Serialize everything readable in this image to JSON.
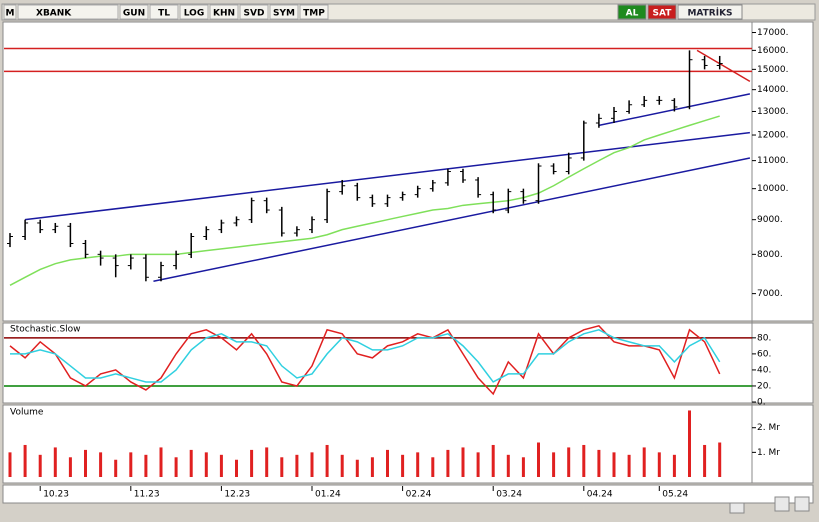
{
  "toolbar": {
    "left": [
      "M",
      "XBANK",
      "GUN",
      "TL",
      "LOG",
      "KHN",
      "SVD",
      "SYM",
      "TMP"
    ],
    "right": [
      "AL",
      "SAT",
      "MATRİKS"
    ]
  },
  "chart_data": [
    {
      "type": "ohlc",
      "log_scale": true,
      "ylim": [
        6400,
        17500
      ],
      "yticks": [
        {
          "value": 7000,
          "label": "7000."
        },
        {
          "value": 8000,
          "label": "8000."
        },
        {
          "value": 9000,
          "label": "9000."
        },
        {
          "value": 10000,
          "label": "10000."
        },
        {
          "value": 11000,
          "label": "11000."
        },
        {
          "value": 12000,
          "label": "12000."
        },
        {
          "value": 13000,
          "label": "13000."
        },
        {
          "value": 14000,
          "label": "14000."
        },
        {
          "value": 15000,
          "label": "15000."
        },
        {
          "value": 16000,
          "label": "16000."
        },
        {
          "value": 17000,
          "label": "17000."
        }
      ],
      "color": "#000000",
      "open": [
        8300,
        8500,
        8900,
        8700,
        8800,
        8300,
        8000,
        7900,
        7700,
        7900,
        7400,
        7700,
        8000,
        8500,
        8700,
        8900,
        9000,
        9600,
        9300,
        8600,
        8700,
        9000,
        9900,
        10100,
        9700,
        9500,
        9700,
        9800,
        10000,
        10200,
        10600,
        10300,
        9800,
        9300,
        9900,
        9600,
        10800,
        10600,
        11100,
        12500,
        12700,
        13000,
        13300,
        13500,
        13500,
        13200,
        15500,
        15200
      ],
      "high": [
        8600,
        9000,
        9000,
        8900,
        8900,
        8400,
        8100,
        8000,
        8000,
        8000,
        7800,
        8100,
        8600,
        8800,
        9000,
        9100,
        9700,
        9700,
        9400,
        8800,
        9100,
        10000,
        10300,
        10200,
        9800,
        9800,
        9900,
        10100,
        10300,
        10700,
        10700,
        10400,
        9900,
        10000,
        10000,
        10900,
        10900,
        11300,
        12600,
        12900,
        13200,
        13500,
        13700,
        13700,
        13600,
        16000,
        15700,
        15700
      ],
      "low": [
        8200,
        8400,
        8600,
        8600,
        8200,
        7900,
        7700,
        7400,
        7600,
        7300,
        7300,
        7600,
        7900,
        8400,
        8600,
        8800,
        8900,
        9200,
        8500,
        8500,
        8600,
        8900,
        9800,
        9600,
        9400,
        9400,
        9600,
        9700,
        9900,
        10100,
        10200,
        9700,
        9200,
        9200,
        9500,
        9500,
        10500,
        10500,
        11000,
        12300,
        12500,
        12900,
        13200,
        13300,
        13000,
        13100,
        15000,
        15000
      ],
      "close": [
        8500,
        8900,
        8700,
        8800,
        8300,
        8000,
        7900,
        7700,
        7900,
        7400,
        7700,
        8000,
        8500,
        8700,
        8900,
        9000,
        9600,
        9300,
        8600,
        8700,
        9000,
        9900,
        10100,
        9700,
        9500,
        9700,
        9800,
        10000,
        10200,
        10600,
        10300,
        9800,
        9300,
        9900,
        9600,
        10800,
        10600,
        11100,
        12500,
        12700,
        13000,
        13300,
        13500,
        13500,
        13200,
        15500,
        15200,
        15300
      ],
      "series": [
        {
          "color": "#7fe05a",
          "values": [
            7200,
            7400,
            7600,
            7750,
            7850,
            7900,
            7950,
            7950,
            8000,
            8000,
            8000,
            8000,
            8050,
            8100,
            8150,
            8200,
            8250,
            8300,
            8350,
            8400,
            8450,
            8550,
            8700,
            8800,
            8900,
            9000,
            9100,
            9200,
            9300,
            9350,
            9450,
            9500,
            9550,
            9600,
            9700,
            9850,
            10100,
            10400,
            10700,
            11000,
            11300,
            11500,
            11800,
            12000,
            12200,
            12400,
            12600,
            12800
          ]
        }
      ],
      "hlines": [
        {
          "value": 16100,
          "color": "#d42020"
        },
        {
          "value": 14900,
          "color": "#d42020"
        }
      ],
      "trendlines": [
        {
          "color": "#1a1aa0",
          "points": [
            [
              1,
              9000
            ],
            [
              49,
              12100
            ]
          ]
        },
        {
          "color": "#1a1aa0",
          "points": [
            [
              9.5,
              7300
            ],
            [
              49,
              11100
            ]
          ]
        },
        {
          "color": "#1a1aa0",
          "points": [
            [
              39,
              12400
            ],
            [
              49,
              13800
            ]
          ]
        },
        {
          "color": "#d42020",
          "points": [
            [
              45.5,
              16000
            ],
            [
              49,
              14400
            ]
          ]
        }
      ]
    },
    {
      "type": "line",
      "title": "Stochastic.Slow",
      "ylim": [
        0,
        96
      ],
      "yticks": [
        {
          "value": 0,
          "label": "0."
        },
        {
          "value": 20,
          "label": "20."
        },
        {
          "value": 40,
          "label": "40."
        },
        {
          "value": 60,
          "label": "60."
        },
        {
          "value": 80,
          "label": "80."
        }
      ],
      "hlines": [
        {
          "value": 80,
          "color": "#8b0000"
        },
        {
          "value": 20,
          "color": "#008000"
        }
      ],
      "series": [
        {
          "color": "#e02020",
          "values": [
            70,
            55,
            75,
            60,
            30,
            20,
            35,
            40,
            25,
            15,
            30,
            60,
            85,
            90,
            80,
            65,
            85,
            60,
            25,
            20,
            45,
            90,
            85,
            60,
            55,
            70,
            75,
            85,
            80,
            90,
            60,
            30,
            10,
            50,
            30,
            85,
            60,
            80,
            90,
            95,
            75,
            70,
            70,
            65,
            30,
            90,
            75,
            35
          ]
        },
        {
          "color": "#30d0e0",
          "values": [
            60,
            60,
            65,
            60,
            45,
            30,
            30,
            35,
            30,
            25,
            25,
            40,
            65,
            80,
            85,
            75,
            75,
            70,
            45,
            30,
            35,
            60,
            80,
            75,
            65,
            65,
            70,
            80,
            80,
            85,
            70,
            50,
            25,
            35,
            35,
            60,
            60,
            75,
            85,
            90,
            80,
            75,
            70,
            70,
            50,
            70,
            80,
            50
          ]
        }
      ]
    },
    {
      "type": "bar",
      "title": "Volume",
      "ylim": [
        0,
        2.8
      ],
      "color": "#e02020",
      "yticks": [
        {
          "value": 1,
          "label": "1. Mr"
        },
        {
          "value": 2,
          "label": "2. Mr"
        }
      ],
      "categories": [
        null,
        null,
        "10.23",
        null,
        null,
        null,
        null,
        null,
        "11.23",
        null,
        null,
        null,
        null,
        null,
        "12.23",
        null,
        null,
        null,
        null,
        null,
        "01.24",
        null,
        null,
        null,
        null,
        null,
        "02.24",
        null,
        null,
        null,
        null,
        null,
        "03.24",
        null,
        null,
        null,
        null,
        null,
        "04.24",
        null,
        null,
        null,
        null,
        "05.24",
        null,
        null,
        null,
        null
      ],
      "values": [
        1.0,
        1.3,
        0.9,
        1.2,
        0.8,
        1.1,
        1.0,
        0.7,
        1.0,
        0.9,
        1.2,
        0.8,
        1.1,
        1.0,
        0.9,
        0.7,
        1.1,
        1.2,
        0.8,
        0.9,
        1.0,
        1.3,
        0.9,
        0.7,
        0.8,
        1.1,
        0.9,
        1.0,
        0.8,
        1.1,
        1.2,
        1.0,
        1.3,
        0.9,
        0.8,
        1.4,
        1.0,
        1.2,
        1.3,
        1.1,
        1.0,
        0.9,
        1.2,
        1.0,
        0.9,
        2.7,
        1.3,
        1.4
      ]
    }
  ]
}
